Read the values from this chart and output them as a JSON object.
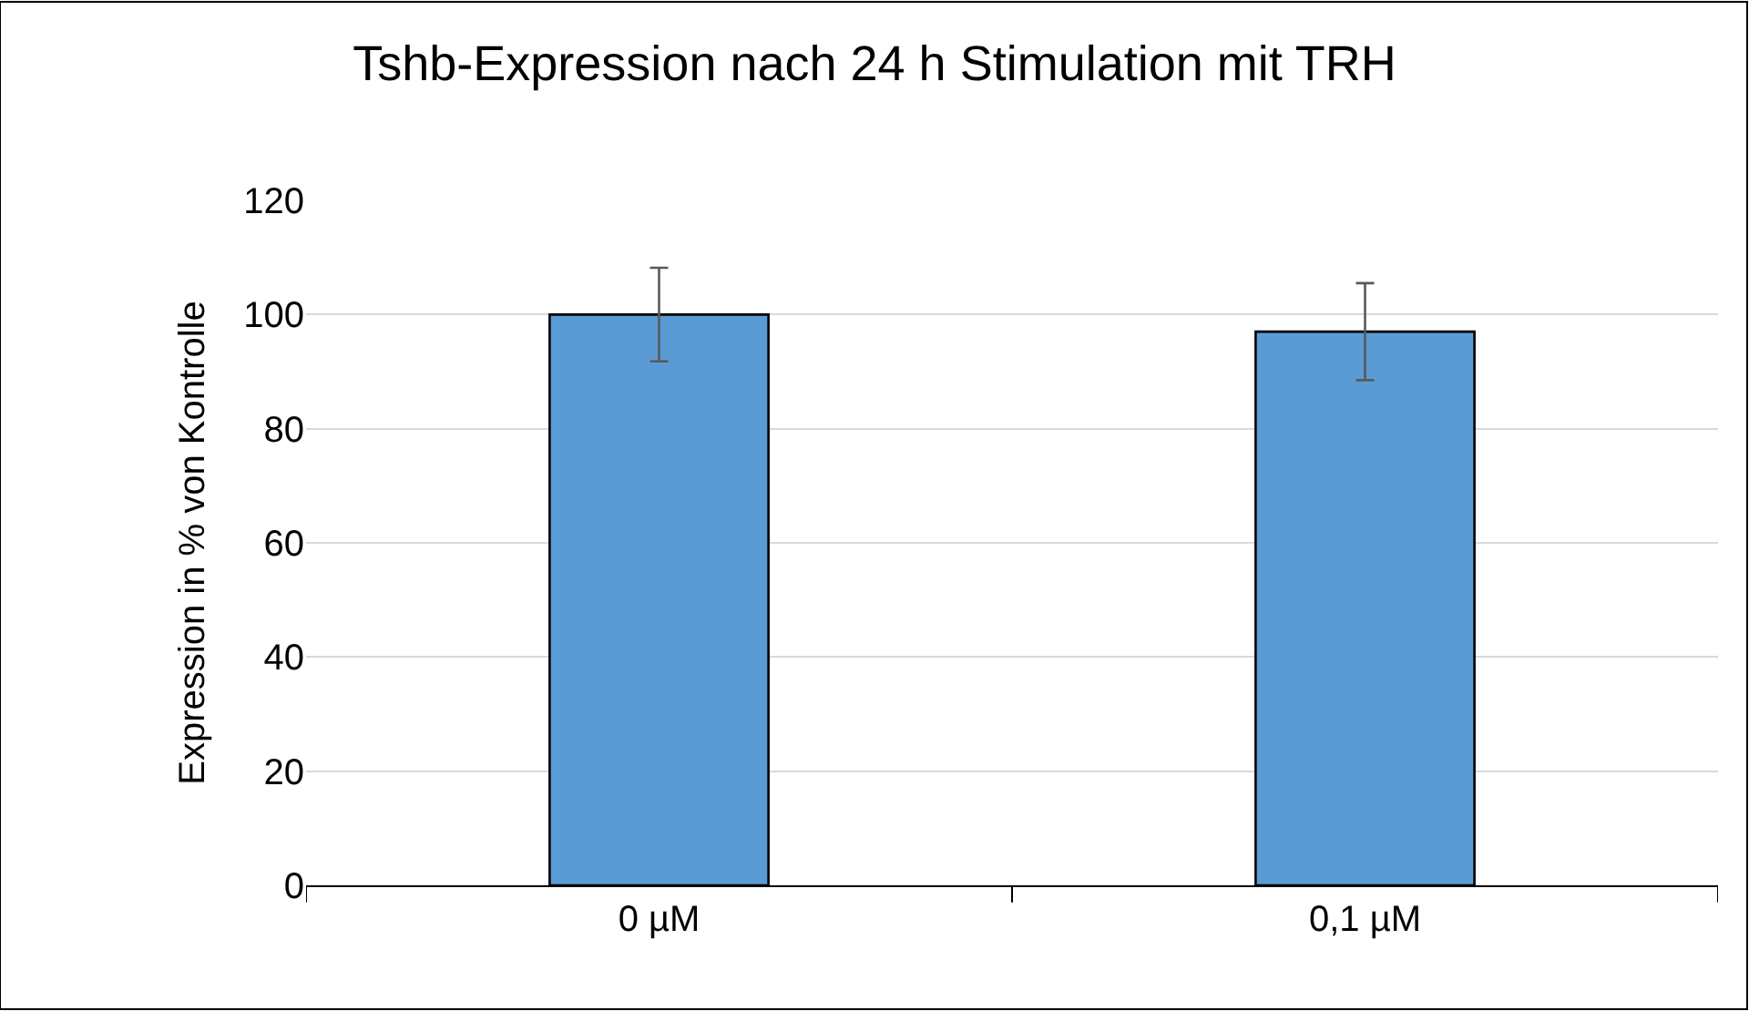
{
  "chart_data": {
    "type": "bar",
    "title": "Tshb-Expression nach 24 h Stimulation mit TRH",
    "ylabel": "Expression in % von Kontrolle",
    "categories": [
      "0 µM",
      "0,1 µM"
    ],
    "values": [
      100,
      97
    ],
    "errors": [
      8.2,
      8.5
    ],
    "color": "#5b9bd5",
    "ylim": [
      0,
      120
    ],
    "yticks": [
      0,
      20,
      40,
      60,
      80,
      100,
      120
    ],
    "grid": "y",
    "legend": false
  }
}
